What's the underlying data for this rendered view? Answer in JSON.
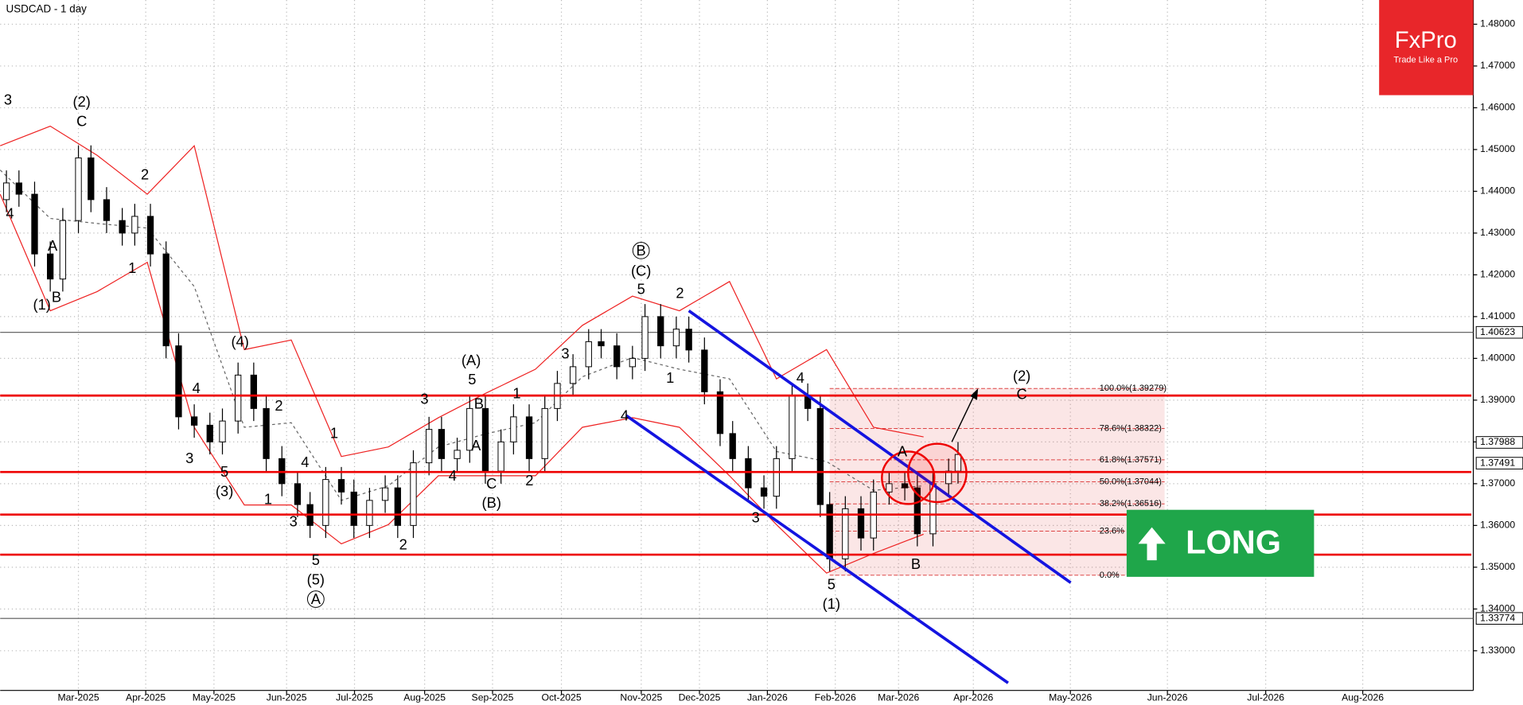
{
  "chart_data": {
    "type": "candlestick",
    "title": "USDCAD - 1 day",
    "xlim": [
      0,
      470
    ],
    "ylim": [
      1.3205,
      1.4858
    ],
    "xticks": [
      {
        "value": 25,
        "label": "Mar-2025"
      },
      {
        "value": 46.5,
        "label": "Apr-2025"
      },
      {
        "value": 68.3,
        "label": "May-2025"
      },
      {
        "value": 91.5,
        "label": "Jun-2025"
      },
      {
        "value": 113.2,
        "label": "Jul-2025"
      },
      {
        "value": 135.6,
        "label": "Aug-2025"
      },
      {
        "value": 157.3,
        "label": "Sep-2025"
      },
      {
        "value": 179.3,
        "label": "Oct-2025"
      },
      {
        "value": 204.8,
        "label": "Nov-2025"
      },
      {
        "value": 223.4,
        "label": "Dec-2025"
      },
      {
        "value": 245.1,
        "label": "Jan-2026"
      },
      {
        "value": 266.8,
        "label": "Feb-2026"
      },
      {
        "value": 287,
        "label": "Mar-2026"
      },
      {
        "value": 310.9,
        "label": "Apr-2026"
      },
      {
        "value": 341.9,
        "label": "May-2026"
      },
      {
        "value": 372.9,
        "label": "Jun-2026"
      },
      {
        "value": 404.3,
        "label": "Jul-2026"
      },
      {
        "value": 435.3,
        "label": "Aug-2026"
      }
    ],
    "yticks": [
      {
        "value": 1.48,
        "label": "1.48000"
      },
      {
        "value": 1.47,
        "label": "1.47000"
      },
      {
        "value": 1.46,
        "label": "1.46000"
      },
      {
        "value": 1.45,
        "label": "1.45000"
      },
      {
        "value": 1.44,
        "label": "1.44000"
      },
      {
        "value": 1.43,
        "label": "1.43000"
      },
      {
        "value": 1.42,
        "label": "1.42000"
      },
      {
        "value": 1.41,
        "label": "1.41000"
      },
      {
        "value": 1.4,
        "label": "1.40000"
      },
      {
        "value": 1.39,
        "label": "1.39000"
      },
      {
        "value": 1.38,
        "label": "1.38000"
      },
      {
        "value": 1.37,
        "label": "1.37000"
      },
      {
        "value": 1.36,
        "label": "1.36000"
      },
      {
        "value": 1.35,
        "label": "1.35000"
      },
      {
        "value": 1.34,
        "label": "1.34000"
      },
      {
        "value": 1.33,
        "label": "1.33000"
      }
    ],
    "grid": true,
    "candles": {
      "x": [
        2,
        6,
        11,
        16,
        20,
        25,
        29,
        34,
        39,
        43,
        48,
        53,
        57,
        62,
        67,
        71,
        76,
        81,
        85,
        90,
        95,
        99,
        104,
        109,
        113,
        118,
        123,
        127,
        132,
        137,
        141,
        146,
        150,
        155,
        160,
        164,
        169,
        174,
        178,
        183,
        188,
        192,
        197,
        202,
        206,
        211,
        216,
        220,
        225,
        230,
        234,
        239,
        244,
        248,
        253,
        258,
        262,
        265,
        270,
        275,
        279,
        284,
        289,
        293,
        298,
        303,
        306
      ],
      "open": [
        1.438,
        1.442,
        1.4393,
        1.425,
        1.419,
        1.433,
        1.448,
        1.438,
        1.433,
        1.43,
        1.434,
        1.425,
        1.403,
        1.386,
        1.384,
        1.38,
        1.385,
        1.396,
        1.388,
        1.376,
        1.37,
        1.365,
        1.36,
        1.371,
        1.368,
        1.36,
        1.366,
        1.369,
        1.36,
        1.375,
        1.383,
        1.376,
        1.378,
        1.388,
        1.373,
        1.38,
        1.386,
        1.376,
        1.388,
        1.394,
        1.398,
        1.404,
        1.403,
        1.398,
        1.4,
        1.41,
        1.403,
        1.407,
        1.402,
        1.392,
        1.382,
        1.376,
        1.369,
        1.367,
        1.376,
        1.391,
        1.388,
        1.365,
        1.352,
        1.364,
        1.357,
        1.368,
        1.37,
        1.369,
        1.358,
        1.37,
        1.373
      ],
      "high": [
        1.445,
        1.445,
        1.4423,
        1.428,
        1.436,
        1.451,
        1.451,
        1.441,
        1.436,
        1.437,
        1.437,
        1.428,
        1.406,
        1.389,
        1.387,
        1.388,
        1.399,
        1.399,
        1.391,
        1.379,
        1.373,
        1.368,
        1.374,
        1.374,
        1.371,
        1.369,
        1.372,
        1.372,
        1.378,
        1.386,
        1.386,
        1.381,
        1.391,
        1.391,
        1.383,
        1.389,
        1.389,
        1.391,
        1.397,
        1.401,
        1.407,
        1.407,
        1.406,
        1.403,
        1.413,
        1.413,
        1.41,
        1.41,
        1.405,
        1.395,
        1.385,
        1.379,
        1.372,
        1.379,
        1.394,
        1.394,
        1.391,
        1.368,
        1.367,
        1.367,
        1.371,
        1.373,
        1.373,
        1.372,
        1.373,
        1.376,
        1.38
      ],
      "low": [
        1.435,
        1.4363,
        1.422,
        1.416,
        1.416,
        1.43,
        1.435,
        1.43,
        1.427,
        1.427,
        1.422,
        1.4,
        1.383,
        1.381,
        1.377,
        1.377,
        1.382,
        1.385,
        1.373,
        1.367,
        1.362,
        1.357,
        1.357,
        1.365,
        1.357,
        1.357,
        1.363,
        1.357,
        1.357,
        1.372,
        1.373,
        1.373,
        1.375,
        1.37,
        1.37,
        1.377,
        1.373,
        1.373,
        1.385,
        1.391,
        1.395,
        1.4,
        1.395,
        1.395,
        1.397,
        1.4,
        1.4,
        1.399,
        1.389,
        1.379,
        1.373,
        1.366,
        1.364,
        1.364,
        1.373,
        1.385,
        1.362,
        1.349,
        1.349,
        1.354,
        1.354,
        1.365,
        1.366,
        1.355,
        1.355,
        1.367,
        1.37
      ],
      "close": [
        1.442,
        1.4393,
        1.425,
        1.419,
        1.433,
        1.448,
        1.438,
        1.433,
        1.43,
        1.434,
        1.425,
        1.403,
        1.386,
        1.384,
        1.38,
        1.385,
        1.396,
        1.388,
        1.376,
        1.37,
        1.365,
        1.36,
        1.371,
        1.368,
        1.36,
        1.366,
        1.369,
        1.36,
        1.375,
        1.383,
        1.376,
        1.378,
        1.388,
        1.373,
        1.38,
        1.386,
        1.376,
        1.388,
        1.394,
        1.398,
        1.404,
        1.403,
        1.398,
        1.4,
        1.41,
        1.403,
        1.407,
        1.402,
        1.392,
        1.382,
        1.376,
        1.369,
        1.367,
        1.376,
        1.391,
        1.388,
        1.365,
        1.352,
        1.364,
        1.357,
        1.368,
        1.37,
        1.369,
        1.358,
        1.37,
        1.373,
        1.377
      ]
    },
    "bands": {
      "x": [
        0,
        16,
        31,
        47,
        62,
        78,
        93,
        109,
        124,
        140,
        155,
        171,
        186,
        202,
        217,
        233,
        248,
        264,
        279,
        295
      ],
      "upper": [
        1.4509,
        1.4556,
        1.4486,
        1.4393,
        1.4509,
        1.4021,
        1.4044,
        1.3765,
        1.3788,
        1.3858,
        1.3916,
        1.3974,
        1.4079,
        1.4149,
        1.4114,
        1.4184,
        1.3951,
        1.4021,
        1.3835,
        1.3812
      ],
      "middle": [
        1.4451,
        1.4335,
        1.4323,
        1.4312,
        1.4172,
        1.3835,
        1.3846,
        1.366,
        1.3695,
        1.3788,
        1.3819,
        1.3846,
        1.3956,
        1.4002,
        1.3974,
        1.3951,
        1.3777,
        1.3753,
        1.3684,
        1.3695
      ],
      "lower": [
        1.4393,
        1.4114,
        1.416,
        1.423,
        1.3835,
        1.3649,
        1.3649,
        1.3556,
        1.3602,
        1.3719,
        1.3719,
        1.3719,
        1.3835,
        1.3858,
        1.3835,
        1.3719,
        1.3602,
        1.3486,
        1.3533,
        1.3579
      ]
    },
    "levels": [
      1.3911,
      1.3728,
      1.3626,
      1.353
    ],
    "hlines": [
      {
        "value": 1.40623,
        "label": "1.40623"
      },
      {
        "value": 1.33774,
        "label": "1.33774"
      }
    ],
    "price_markers": [
      {
        "value": 1.37988,
        "label": "1.37988"
      },
      {
        "value": 1.37491,
        "label": "1.37491"
      }
    ],
    "channel": [
      {
        "x": [
          220,
          342
        ],
        "y": [
          1.4114,
          1.3463
        ]
      },
      {
        "x": [
          200,
          322
        ],
        "y": [
          1.3863,
          1.3223
        ]
      }
    ],
    "fib": {
      "x": [
        265,
        372
      ],
      "levels": [
        {
          "value": 1.39279,
          "label": "100.0%(1.39279)"
        },
        {
          "value": 1.38322,
          "label": "78.6%(1.38322)"
        },
        {
          "value": 1.37571,
          "label": "61.8%(1.37571)"
        },
        {
          "value": 1.37044,
          "label": "50.0%(1.37044)"
        },
        {
          "value": 1.36516,
          "label": "38.2%(1.36516)"
        },
        {
          "value": 1.35864,
          "label": "23.6%"
        },
        {
          "value": 1.34809,
          "label": "0.0%"
        }
      ]
    },
    "annotations": [
      "3",
      "(2)",
      "C",
      "2",
      "4",
      "A",
      "1",
      "B",
      "(1)",
      "(4)",
      "4",
      "2",
      "1",
      "3",
      "4",
      "5",
      "(3)",
      "1",
      "3",
      "5",
      "(5)",
      "A",
      "2",
      "(A)",
      "5",
      "3",
      "B",
      "1",
      "A",
      "4",
      "2",
      "C",
      "(B)",
      "3",
      "B",
      "(C)",
      "5",
      "2",
      "1",
      "4",
      "4",
      "3",
      "A",
      "B",
      "5",
      "(1)",
      "(2)",
      "C"
    ]
  },
  "logo": {
    "brand": "FxPro",
    "tagline": "Trade Like a Pro"
  },
  "signal": "LONG"
}
